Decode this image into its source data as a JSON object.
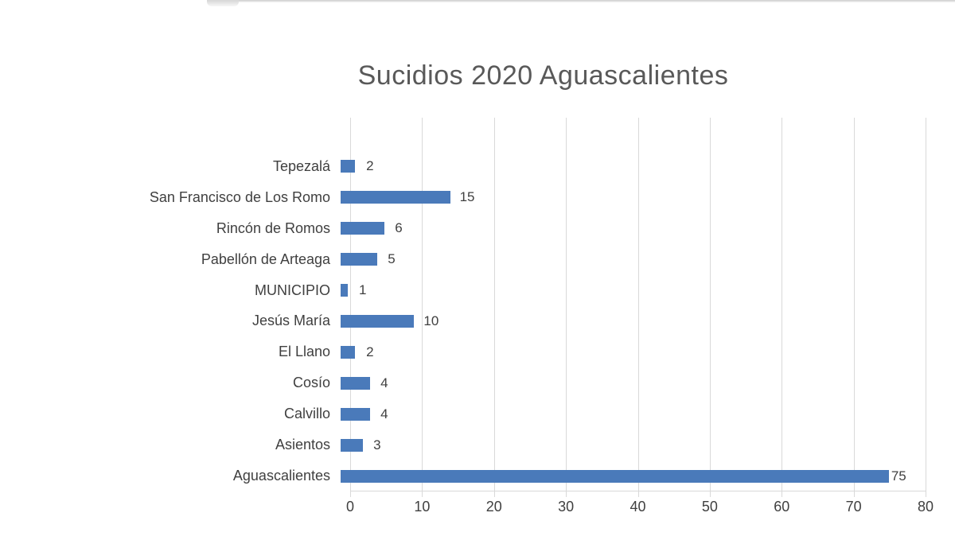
{
  "page": {
    "background": "#ffffff",
    "artifact_line_color": "#cccccc"
  },
  "chart_data": {
    "type": "bar",
    "orientation": "horizontal",
    "title": "Sucidios 2020 Aguascalientes",
    "categories": [
      "Tepezalá",
      "San Francisco de Los Romo",
      "Rincón de Romos",
      "Pabellón de Arteaga",
      "MUNICIPIO",
      "Jesús María",
      "El Llano",
      "Cosío",
      "Calvillo",
      "Asientos",
      "Aguascalientes"
    ],
    "values": [
      2,
      15,
      6,
      5,
      1,
      10,
      2,
      4,
      4,
      3,
      75
    ],
    "xlabel": "",
    "ylabel": "",
    "xlim": [
      0,
      80
    ],
    "xticks": [
      0,
      10,
      20,
      30,
      40,
      50,
      60,
      70,
      80
    ],
    "grid": "vertical-only",
    "legend": "none",
    "data_labels": "outside-end",
    "bar_color": "#4a7aba",
    "title_color": "#595959",
    "label_color": "#404040",
    "gridline_color": "#d9d9d9"
  }
}
